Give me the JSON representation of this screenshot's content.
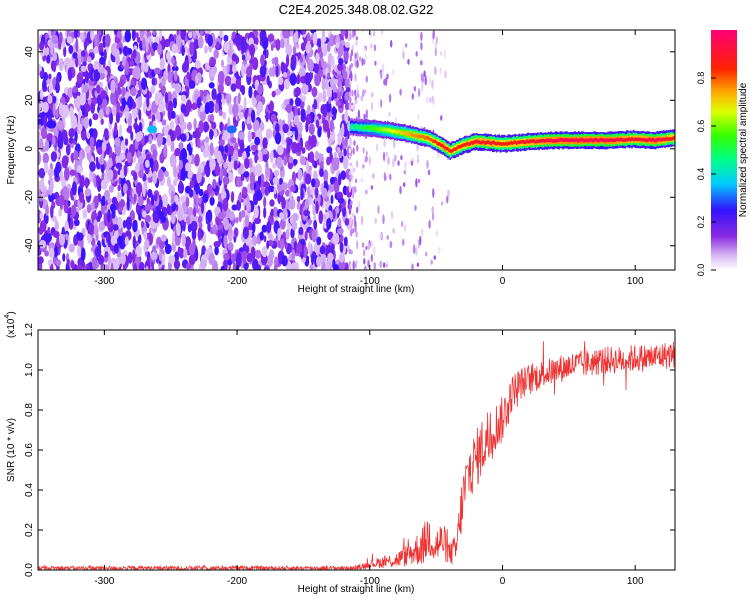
{
  "title": "C2E4.2025.348.08.02.G22",
  "chart_data": [
    {
      "type": "heatmap",
      "xlabel": "Height of straight line (km)",
      "ylabel": "Frequency (Hz)",
      "xlim": [
        -350,
        130
      ],
      "ylim": [
        -50,
        49
      ],
      "xticks": [
        -300,
        -200,
        -100,
        0,
        100
      ],
      "yticks": [
        -40,
        -20,
        0,
        20,
        40
      ],
      "colorbar": {
        "label": "Normalized spectral amplitude",
        "range": [
          0,
          1
        ],
        "ticks": [
          "0.0",
          "0.2",
          "0.4",
          "0.6",
          "0.8"
        ],
        "tick_values": [
          0.0,
          0.2,
          0.4,
          0.6,
          0.8
        ]
      },
      "ridge": {
        "x": [
          -115,
          -100,
          -85,
          -70,
          -55,
          -45,
          -40,
          -30,
          -20,
          -10,
          0,
          20,
          40,
          60,
          80,
          100,
          115,
          130
        ],
        "frequency": [
          9,
          8.5,
          7.5,
          6,
          4,
          1,
          -1,
          1.5,
          3,
          2.5,
          2,
          3,
          3.5,
          3.5,
          3.5,
          4,
          3.5,
          4.5
        ],
        "amplitude": [
          0.45,
          0.55,
          0.65,
          0.75,
          0.8,
          0.9,
          0.85,
          0.85,
          0.9,
          0.9,
          0.85,
          0.9,
          0.95,
          0.95,
          0.95,
          0.9,
          0.95,
          0.85
        ]
      },
      "noise_region": {
        "x_start": -350,
        "x_end": -115,
        "amplitude_range": [
          0.05,
          0.25
        ]
      },
      "sparse_region": {
        "x_start": -115,
        "x_end": -40,
        "amplitude_range": [
          0.02,
          0.12
        ]
      },
      "features": [
        {
          "x": -264,
          "frequency": 8,
          "amplitude": 0.35
        },
        {
          "x": -204,
          "frequency": 8,
          "amplitude": 0.3
        },
        {
          "x": -340,
          "frequency": 10,
          "amplitude": 0.25
        }
      ]
    },
    {
      "type": "line",
      "xlabel": "Height of straight line (km)",
      "ylabel": "SNR (10 * v/v)",
      "y_multiplier_label": "(x10",
      "y_multiplier_exp": "4",
      "y_multiplier_close": ")",
      "xlim": [
        -350,
        130
      ],
      "ylim": [
        0.0,
        1.2
      ],
      "xticks": [
        -300,
        -200,
        -100,
        0,
        100
      ],
      "yticks": [
        "0.0",
        "0.2",
        "0.4",
        "0.6",
        "0.8",
        "1.0",
        "1.2"
      ],
      "ytick_values": [
        0.0,
        0.2,
        0.4,
        0.6,
        0.8,
        1.0,
        1.2
      ],
      "series": [
        {
          "name": "SNR",
          "color": "#ee3333",
          "x": [
            -350,
            -300,
            -250,
            -200,
            -150,
            -110,
            -100,
            -90,
            -80,
            -70,
            -60,
            -55,
            -50,
            -45,
            -40,
            -35,
            -30,
            -25,
            -20,
            -15,
            -10,
            -5,
            0,
            5,
            10,
            20,
            30,
            40,
            50,
            60,
            70,
            80,
            90,
            100,
            110,
            120,
            130
          ],
          "y": [
            0.01,
            0.01,
            0.01,
            0.01,
            0.01,
            0.01,
            0.03,
            0.04,
            0.05,
            0.08,
            0.12,
            0.18,
            0.12,
            0.15,
            0.08,
            0.1,
            0.35,
            0.5,
            0.55,
            0.62,
            0.68,
            0.72,
            0.75,
            0.85,
            0.92,
            0.95,
            0.98,
            1.0,
            1.02,
            1.03,
            1.04,
            1.05,
            1.05,
            1.06,
            1.06,
            1.07,
            1.08
          ],
          "noise_amplitude": [
            0.01,
            0.01,
            0.01,
            0.01,
            0.01,
            0.01,
            0.02,
            0.03,
            0.04,
            0.06,
            0.1,
            0.12,
            0.1,
            0.1,
            0.06,
            0.08,
            0.15,
            0.15,
            0.15,
            0.15,
            0.15,
            0.12,
            0.12,
            0.1,
            0.08,
            0.08,
            0.07,
            0.07,
            0.07,
            0.07,
            0.07,
            0.07,
            0.07,
            0.07,
            0.07,
            0.07,
            0.07
          ]
        }
      ]
    }
  ]
}
